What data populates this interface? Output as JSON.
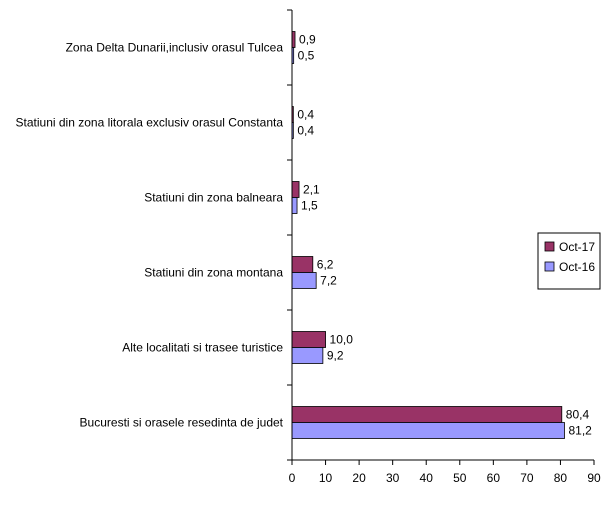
{
  "chart_data": {
    "type": "bar",
    "orientation": "horizontal",
    "categories": [
      "Zona Delta Dunarii,inclusiv  orasul Tulcea",
      "Statiuni din zona litorala exclusiv orasul Constanta",
      "Statiuni din zona balneara",
      "Statiuni din zona montana",
      "Alte localitati si trasee turistice",
      "Bucuresti si orasele resedinta de judet"
    ],
    "series": [
      {
        "name": "Oct-17",
        "color": "#993366",
        "values": [
          0.9,
          0.4,
          2.1,
          6.2,
          10.0,
          80.4
        ],
        "value_labels": [
          "0,9",
          "0,4",
          "2,1",
          "6,2",
          "10,0",
          "80,4"
        ]
      },
      {
        "name": "Oct-16",
        "color": "#9999ff",
        "values": [
          0.5,
          0.4,
          1.5,
          7.2,
          9.2,
          81.2
        ],
        "value_labels": [
          "0,5",
          "0,4",
          "1,5",
          "7,2",
          "9,2",
          "81,2"
        ]
      }
    ],
    "xlim": [
      0,
      90
    ],
    "xticks": [
      0,
      10,
      20,
      30,
      40,
      50,
      60,
      70,
      80,
      90
    ],
    "xtick_labels": [
      "0",
      "10",
      "20",
      "30",
      "40",
      "50",
      "60",
      "70",
      "80",
      "90"
    ],
    "title": "",
    "xlabel": "",
    "ylabel": "",
    "grid": false,
    "legend": "right"
  }
}
